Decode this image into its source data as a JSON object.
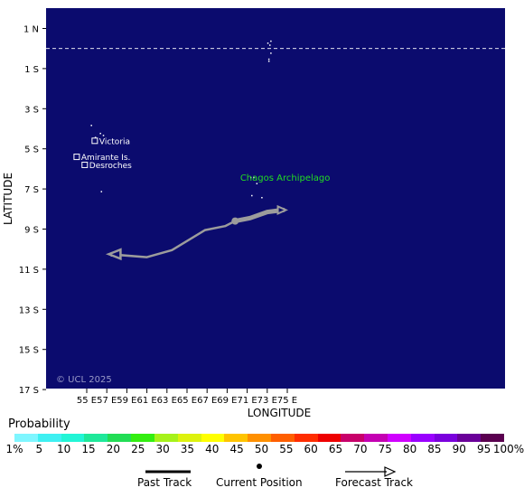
{
  "map": {
    "lat_labels": [
      "1 N",
      "1 S",
      "3 S",
      "5 S",
      "7 S",
      "9 S",
      "11 S",
      "13 S",
      "15 S",
      "17 S"
    ],
    "lon_labels": [
      "55 E",
      "57 E",
      "59 E",
      "61 E",
      "63 E",
      "65 E",
      "67 E",
      "69 E",
      "71 E",
      "73 E",
      "75 E"
    ],
    "y_axis_label": "LATITUDE",
    "x_axis_label": "LONGITUDE",
    "credit": "© UCL 2025",
    "ocean_color": "#0b0b6e",
    "track_color": "#9c9c9c",
    "places": [
      {
        "name": "Victoria",
        "marker": "square"
      },
      {
        "name": "Amirante Is.",
        "marker": "square"
      },
      {
        "name": "Desroches",
        "marker": "square"
      }
    ],
    "region_label": "Chagos Archipelago"
  },
  "storm": {
    "current_position": {
      "lon": 69.8,
      "lat": -8.6
    },
    "past_track": [
      {
        "lon": 69.8,
        "lat": -8.6
      },
      {
        "lon": 71.3,
        "lat": -8.45
      },
      {
        "lon": 73.0,
        "lat": -8.15
      },
      {
        "lon": 74.6,
        "lat": -8.05
      }
    ],
    "forecast_track": [
      {
        "lon": 69.8,
        "lat": -8.6
      },
      {
        "lon": 68.8,
        "lat": -8.85
      },
      {
        "lon": 66.8,
        "lat": -9.05
      },
      {
        "lon": 63.5,
        "lat": -10.05
      },
      {
        "lon": 61.0,
        "lat": -10.4
      },
      {
        "lon": 57.2,
        "lat": -10.25
      }
    ]
  },
  "legend": {
    "title": "Probability",
    "labels": [
      "1%",
      "5",
      "10",
      "15",
      "20",
      "25",
      "30",
      "35",
      "40",
      "45",
      "50",
      "55",
      "60",
      "65",
      "70",
      "75",
      "80",
      "85",
      "90",
      "95",
      "100%"
    ],
    "colors": [
      "#7ff6ff",
      "#3ef0f2",
      "#22f5d6",
      "#1ee89a",
      "#22dd55",
      "#33ee11",
      "#a6f21a",
      "#ddf20e",
      "#ffff00",
      "#ffc400",
      "#ff9000",
      "#ff5f00",
      "#ff2d00",
      "#ee0000",
      "#c8006a",
      "#c400b2",
      "#d000ff",
      "#9a00ff",
      "#7a00dd",
      "#6a0099",
      "#5a004f"
    ],
    "past_track": "Past Track",
    "current_position": "Current Position",
    "forecast_track": "Forecast Track"
  }
}
